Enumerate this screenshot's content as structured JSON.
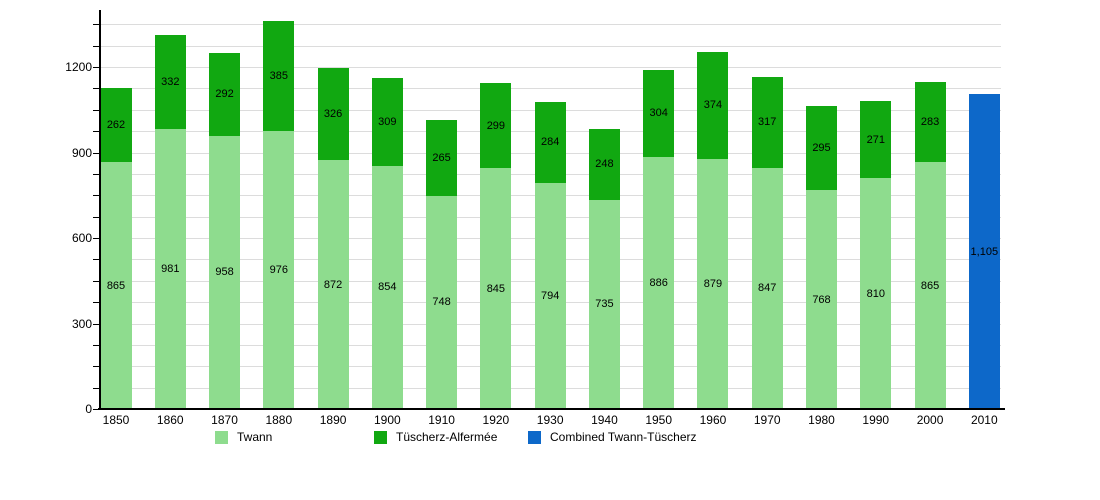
{
  "chart_data": {
    "type": "bar",
    "stacked": true,
    "title": "",
    "xlabel": "",
    "ylabel": "",
    "categories": [
      "1850",
      "1860",
      "1870",
      "1880",
      "1890",
      "1900",
      "1910",
      "1920",
      "1930",
      "1940",
      "1950",
      "1960",
      "1970",
      "1980",
      "1990",
      "2000",
      "2010"
    ],
    "series": [
      {
        "name": "Twann",
        "color": "#8EDC8E",
        "values": [
          865,
          981,
          958,
          976,
          872,
          854,
          748,
          845,
          794,
          735,
          886,
          879,
          847,
          768,
          810,
          865,
          null
        ]
      },
      {
        "name": "Tüscherz-Alfermée",
        "color": "#11A811",
        "values": [
          262,
          332,
          292,
          385,
          326,
          309,
          265,
          299,
          284,
          248,
          304,
          374,
          317,
          295,
          271,
          283,
          null
        ]
      },
      {
        "name": "Combined Twann-Tüscherz",
        "color": "#0D68C9",
        "values": [
          null,
          null,
          null,
          null,
          null,
          null,
          null,
          null,
          null,
          null,
          null,
          null,
          null,
          null,
          null,
          null,
          1105
        ],
        "value_labels": [
          null,
          null,
          null,
          null,
          null,
          null,
          null,
          null,
          null,
          null,
          null,
          null,
          null,
          null,
          null,
          null,
          "1,105"
        ]
      }
    ],
    "ylim": [
      0,
      1400
    ],
    "yticks": [
      0,
      300,
      600,
      900,
      1200
    ],
    "minor_tick_interval": 75,
    "grid": true,
    "gridline_color": "#dcdcdc",
    "axis_color": "#000000",
    "legend_position": "bottom",
    "legend_labels": [
      "Twann",
      "Tüscherz-Alfermée",
      "Combined Twann-Tüscherz"
    ]
  }
}
